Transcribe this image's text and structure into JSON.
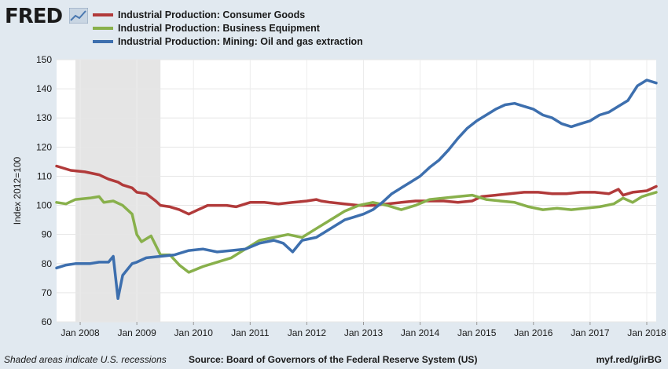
{
  "header": {
    "logo_text": "FRED",
    "logo_icon": "fred-chart-logo-icon"
  },
  "legend": [
    {
      "label": "Industrial Production: Consumer Goods",
      "color": "#b13a3a"
    },
    {
      "label": "Industrial Production: Business Equipment",
      "color": "#88b04b"
    },
    {
      "label": "Industrial Production: Mining: Oil and gas extraction",
      "color": "#3d6fae"
    }
  ],
  "footer": {
    "note": "Shaded areas indicate U.S. recessions",
    "source": "Source: Board of Governors of the Federal Reserve System (US)",
    "url": "myf.red/g/irBG"
  },
  "chart_data": {
    "type": "line",
    "ylabel": "Index 2012=100",
    "xlabel": "",
    "ylim": [
      60,
      150
    ],
    "xlim": [
      "2007-08",
      "2018-03"
    ],
    "yticks": [
      60,
      70,
      80,
      90,
      100,
      110,
      120,
      130,
      140,
      150
    ],
    "xticks": [
      {
        "label": "Jan 2008",
        "date": "2008-01"
      },
      {
        "label": "Jan 2009",
        "date": "2009-01"
      },
      {
        "label": "Jan 2010",
        "date": "2010-01"
      },
      {
        "label": "Jan 2011",
        "date": "2011-01"
      },
      {
        "label": "Jan 2012",
        "date": "2012-01"
      },
      {
        "label": "Jan 2013",
        "date": "2013-01"
      },
      {
        "label": "Jan 2014",
        "date": "2014-01"
      },
      {
        "label": "Jan 2015",
        "date": "2015-01"
      },
      {
        "label": "Jan 2016",
        "date": "2016-01"
      },
      {
        "label": "Jan 2017",
        "date": "2017-01"
      },
      {
        "label": "Jan 2018",
        "date": "2018-01"
      }
    ],
    "recession": {
      "start": "2007-12",
      "end": "2009-06"
    },
    "grid": true,
    "series": [
      {
        "name": "Industrial Production: Consumer Goods",
        "color": "#b13a3a",
        "points": [
          [
            "2007-08",
            113.5
          ],
          [
            "2007-11",
            112
          ],
          [
            "2008-02",
            111.5
          ],
          [
            "2008-05",
            110.5
          ],
          [
            "2008-07",
            109
          ],
          [
            "2008-09",
            108
          ],
          [
            "2008-10",
            107
          ],
          [
            "2008-12",
            106
          ],
          [
            "2009-01",
            104.5
          ],
          [
            "2009-03",
            104
          ],
          [
            "2009-05",
            101.5
          ],
          [
            "2009-06",
            100
          ],
          [
            "2009-08",
            99.5
          ],
          [
            "2009-10",
            98.5
          ],
          [
            "2009-12",
            97
          ],
          [
            "2010-02",
            98.5
          ],
          [
            "2010-04",
            100
          ],
          [
            "2010-06",
            100
          ],
          [
            "2010-08",
            100
          ],
          [
            "2010-10",
            99.5
          ],
          [
            "2011-01",
            101
          ],
          [
            "2011-04",
            101
          ],
          [
            "2011-07",
            100.5
          ],
          [
            "2011-10",
            101
          ],
          [
            "2012-01",
            101.5
          ],
          [
            "2012-03",
            102
          ],
          [
            "2012-04",
            101.5
          ],
          [
            "2012-06",
            101
          ],
          [
            "2012-09",
            100.5
          ],
          [
            "2012-12",
            100
          ],
          [
            "2013-03",
            100
          ],
          [
            "2013-06",
            100.5
          ],
          [
            "2013-09",
            101
          ],
          [
            "2013-12",
            101.5
          ],
          [
            "2014-03",
            101.5
          ],
          [
            "2014-06",
            101.5
          ],
          [
            "2014-09",
            101
          ],
          [
            "2014-12",
            101.5
          ],
          [
            "2015-02",
            103
          ],
          [
            "2015-05",
            103.5
          ],
          [
            "2015-08",
            104
          ],
          [
            "2015-11",
            104.5
          ],
          [
            "2016-02",
            104.5
          ],
          [
            "2016-05",
            104
          ],
          [
            "2016-08",
            104
          ],
          [
            "2016-11",
            104.5
          ],
          [
            "2017-02",
            104.5
          ],
          [
            "2017-05",
            104
          ],
          [
            "2017-07",
            105.5
          ],
          [
            "2017-08",
            103.5
          ],
          [
            "2017-10",
            104.5
          ],
          [
            "2018-01",
            105
          ],
          [
            "2018-03",
            106.5
          ]
        ]
      },
      {
        "name": "Industrial Production: Business Equipment",
        "color": "#88b04b",
        "points": [
          [
            "2007-08",
            101
          ],
          [
            "2007-10",
            100.5
          ],
          [
            "2007-12",
            102
          ],
          [
            "2008-03",
            102.5
          ],
          [
            "2008-05",
            103
          ],
          [
            "2008-06",
            101
          ],
          [
            "2008-08",
            101.5
          ],
          [
            "2008-10",
            100
          ],
          [
            "2008-12",
            97
          ],
          [
            "2009-01",
            90
          ],
          [
            "2009-02",
            87.5
          ],
          [
            "2009-04",
            89.5
          ],
          [
            "2009-06",
            83
          ],
          [
            "2009-08",
            83
          ],
          [
            "2009-10",
            79.5
          ],
          [
            "2009-12",
            77
          ],
          [
            "2010-03",
            79
          ],
          [
            "2010-06",
            80.5
          ],
          [
            "2010-09",
            82
          ],
          [
            "2010-12",
            85
          ],
          [
            "2011-03",
            88
          ],
          [
            "2011-06",
            89
          ],
          [
            "2011-09",
            90
          ],
          [
            "2011-12",
            89
          ],
          [
            "2012-03",
            92
          ],
          [
            "2012-06",
            95
          ],
          [
            "2012-09",
            98
          ],
          [
            "2012-12",
            100
          ],
          [
            "2013-03",
            101
          ],
          [
            "2013-06",
            100
          ],
          [
            "2013-09",
            98.5
          ],
          [
            "2013-12",
            100
          ],
          [
            "2014-03",
            102
          ],
          [
            "2014-06",
            102.5
          ],
          [
            "2014-09",
            103
          ],
          [
            "2014-12",
            103.5
          ],
          [
            "2015-03",
            102
          ],
          [
            "2015-06",
            101.5
          ],
          [
            "2015-09",
            101
          ],
          [
            "2015-12",
            99.5
          ],
          [
            "2016-03",
            98.5
          ],
          [
            "2016-06",
            99
          ],
          [
            "2016-09",
            98.5
          ],
          [
            "2016-12",
            99
          ],
          [
            "2017-03",
            99.5
          ],
          [
            "2017-06",
            100.5
          ],
          [
            "2017-08",
            102.5
          ],
          [
            "2017-10",
            101
          ],
          [
            "2017-12",
            103
          ],
          [
            "2018-02",
            104
          ],
          [
            "2018-03",
            104.5
          ]
        ]
      },
      {
        "name": "Industrial Production: Mining: Oil and gas extraction",
        "color": "#3d6fae",
        "points": [
          [
            "2007-08",
            78.5
          ],
          [
            "2007-10",
            79.5
          ],
          [
            "2007-12",
            80
          ],
          [
            "2008-03",
            80
          ],
          [
            "2008-05",
            80.5
          ],
          [
            "2008-07",
            80.5
          ],
          [
            "2008-08",
            82.5
          ],
          [
            "2008-09",
            68
          ],
          [
            "2008-10",
            76
          ],
          [
            "2008-12",
            80
          ],
          [
            "2009-01",
            80.5
          ],
          [
            "2009-03",
            82
          ],
          [
            "2009-06",
            82.5
          ],
          [
            "2009-09",
            83
          ],
          [
            "2009-12",
            84.5
          ],
          [
            "2010-03",
            85
          ],
          [
            "2010-06",
            84
          ],
          [
            "2010-09",
            84.5
          ],
          [
            "2010-12",
            85
          ],
          [
            "2011-03",
            87
          ],
          [
            "2011-06",
            88
          ],
          [
            "2011-08",
            87
          ],
          [
            "2011-10",
            84
          ],
          [
            "2011-12",
            88
          ],
          [
            "2012-03",
            89
          ],
          [
            "2012-05",
            91
          ],
          [
            "2012-07",
            93
          ],
          [
            "2012-09",
            95
          ],
          [
            "2012-11",
            96
          ],
          [
            "2013-01",
            97
          ],
          [
            "2013-03",
            98.5
          ],
          [
            "2013-05",
            101
          ],
          [
            "2013-07",
            104
          ],
          [
            "2013-09",
            106
          ],
          [
            "2013-11",
            108
          ],
          [
            "2014-01",
            110
          ],
          [
            "2014-03",
            113
          ],
          [
            "2014-05",
            115.5
          ],
          [
            "2014-07",
            119
          ],
          [
            "2014-09",
            123
          ],
          [
            "2014-11",
            126.5
          ],
          [
            "2015-01",
            129
          ],
          [
            "2015-03",
            131
          ],
          [
            "2015-05",
            133
          ],
          [
            "2015-07",
            134.5
          ],
          [
            "2015-09",
            135
          ],
          [
            "2015-11",
            134
          ],
          [
            "2016-01",
            133
          ],
          [
            "2016-03",
            131
          ],
          [
            "2016-05",
            130
          ],
          [
            "2016-07",
            128
          ],
          [
            "2016-09",
            127
          ],
          [
            "2016-11",
            128
          ],
          [
            "2017-01",
            129
          ],
          [
            "2017-03",
            131
          ],
          [
            "2017-05",
            132
          ],
          [
            "2017-07",
            134
          ],
          [
            "2017-09",
            136
          ],
          [
            "2017-11",
            141
          ],
          [
            "2018-01",
            143
          ],
          [
            "2018-03",
            142
          ]
        ]
      }
    ]
  }
}
